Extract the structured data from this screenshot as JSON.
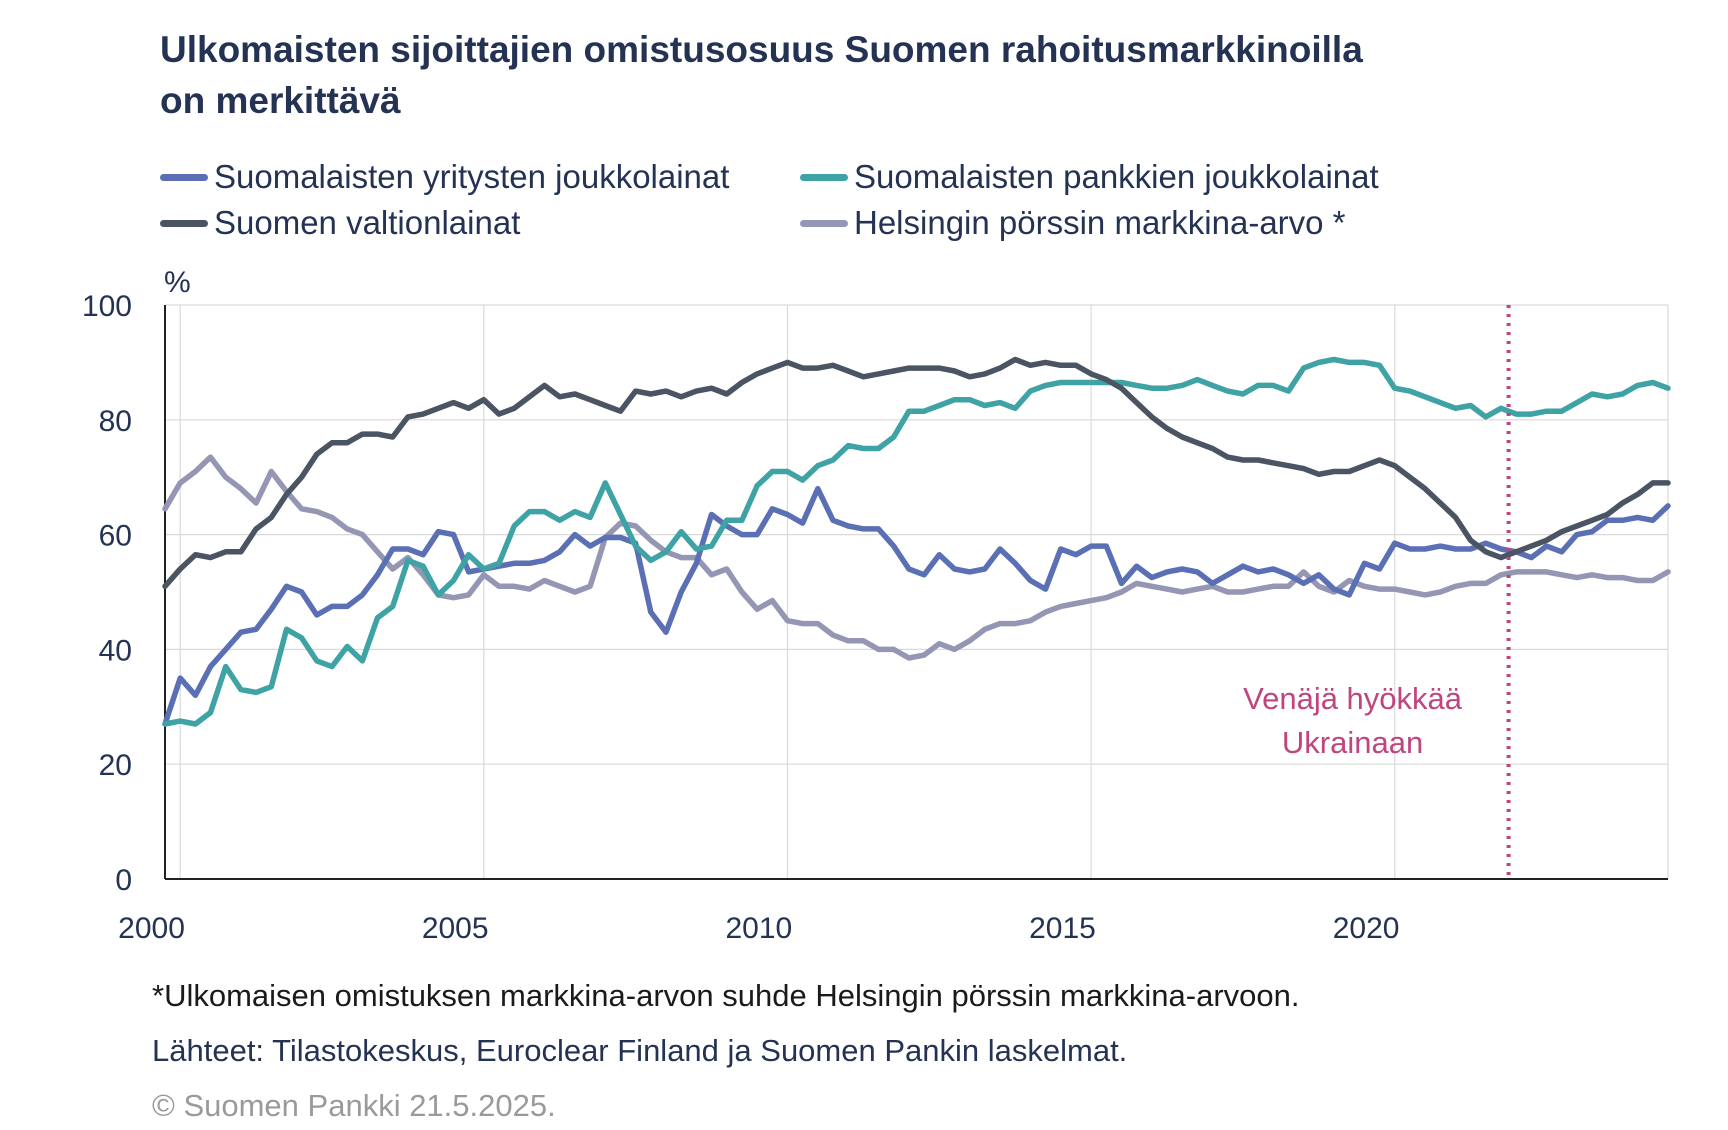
{
  "title_line1": "Ulkomaisten sijoittajien omistusosuus Suomen rahoitusmarkkinoilla",
  "title_line2": "on merkittävä",
  "legend": [
    {
      "label": "Suomalaisten yritysten joukkolainat",
      "color": "#5b6fb5"
    },
    {
      "label": "Suomalaisten pankkien joukkolainat",
      "color": "#3fa3a6"
    },
    {
      "label": "Suomen valtionlainat",
      "color": "#4a5462"
    },
    {
      "label": "Helsingin pörssin markkina-arvo *",
      "color": "#9496b3"
    }
  ],
  "footnotes": {
    "asterisk": "*Ulkomaisen omistuksen markkina-arvon suhde Helsingin pörssin markkina-arvoon.",
    "sources": "Lähteet: Tilastokeskus, Euroclear Finland ja Suomen Pankin laskelmat.",
    "copyright": "© Suomen Pankki 21.5.2025."
  },
  "chart_data": {
    "type": "line",
    "title": "Ulkomaisten sijoittajien omistusosuus Suomen rahoitusmarkkinoilla on merkittävä",
    "ylabel": "%",
    "ylim": [
      0,
      100
    ],
    "yticks": [
      0,
      20,
      40,
      60,
      80,
      100
    ],
    "xlim": [
      1999.75,
      2024.5
    ],
    "xticks": [
      2000,
      2005,
      2010,
      2015,
      2020
    ],
    "grid": true,
    "legend_position": "top",
    "annotations": [
      {
        "type": "vline",
        "x": 2021.875,
        "color": "#c0457f",
        "style": "dotted",
        "text": "Venäjä hyökkää Ukrainaan"
      }
    ],
    "series": [
      {
        "name": "Suomalaisten yritysten joukkolainat",
        "color": "#5b6fb5",
        "x": [
          1999.75,
          2000.0,
          2000.25,
          2000.5,
          2000.75,
          2001.0,
          2001.25,
          2001.5,
          2001.75,
          2002.0,
          2002.25,
          2002.5,
          2002.75,
          2003.0,
          2003.25,
          2003.5,
          2003.75,
          2004.0,
          2004.25,
          2004.5,
          2004.75,
          2005.0,
          2005.25,
          2005.5,
          2005.75,
          2006.0,
          2006.25,
          2006.5,
          2006.75,
          2007.0,
          2007.25,
          2007.5,
          2007.75,
          2008.0,
          2008.25,
          2008.5,
          2008.75,
          2009.0,
          2009.25,
          2009.5,
          2009.75,
          2010.0,
          2010.25,
          2010.5,
          2010.75,
          2011.0,
          2011.25,
          2011.5,
          2011.75,
          2012.0,
          2012.25,
          2012.5,
          2012.75,
          2013.0,
          2013.25,
          2013.5,
          2013.75,
          2014.0,
          2014.25,
          2014.5,
          2014.75,
          2015.0,
          2015.25,
          2015.5,
          2015.75,
          2016.0,
          2016.25,
          2016.5,
          2016.75,
          2017.0,
          2017.25,
          2017.5,
          2017.75,
          2018.0,
          2018.25,
          2018.5,
          2018.75,
          2019.0,
          2019.25,
          2019.5,
          2019.75,
          2020.0,
          2020.25,
          2020.5,
          2020.75,
          2021.0,
          2021.25,
          2021.5,
          2021.75,
          2022.0,
          2022.25,
          2022.5,
          2022.75,
          2023.0,
          2023.25,
          2023.5,
          2023.75,
          2024.0,
          2024.25,
          2024.5
        ],
        "values": [
          27,
          35,
          32,
          37,
          40,
          43,
          43.5,
          47,
          51,
          50,
          46,
          47.5,
          47.5,
          49.5,
          53,
          57.5,
          57.5,
          56.5,
          60.5,
          60,
          53.5,
          54,
          54.5,
          55,
          55,
          55.5,
          57,
          60,
          58,
          59.5,
          59.5,
          58.5,
          46.5,
          43,
          50,
          55,
          63.5,
          61.5,
          60,
          60,
          64.5,
          63.5,
          62,
          68,
          62.5,
          61.5,
          61,
          61,
          58,
          54,
          53,
          56.5,
          54,
          53.5,
          54,
          57.5,
          55,
          52,
          50.5,
          57.5,
          56.5,
          58,
          58,
          51.5,
          54.5,
          52.5,
          53.5,
          54,
          53.5,
          51.5,
          53,
          54.5,
          53.5,
          54,
          53,
          51.5,
          53,
          50.5,
          49.5,
          55,
          54,
          58.5,
          57.5,
          57.5,
          58,
          57.5,
          57.5,
          58.5,
          57.5,
          57,
          56,
          58,
          57,
          60,
          60.5,
          62.5,
          62.5,
          63,
          62.5,
          65
        ]
      },
      {
        "name": "Suomalaisten pankkien joukkolainat",
        "color": "#3fa3a6",
        "x": [
          1999.75,
          2000.0,
          2000.25,
          2000.5,
          2000.75,
          2001.0,
          2001.25,
          2001.5,
          2001.75,
          2002.0,
          2002.25,
          2002.5,
          2002.75,
          2003.0,
          2003.25,
          2003.5,
          2003.75,
          2004.0,
          2004.25,
          2004.5,
          2004.75,
          2005.0,
          2005.25,
          2005.5,
          2005.75,
          2006.0,
          2006.25,
          2006.5,
          2006.75,
          2007.0,
          2007.25,
          2007.5,
          2007.75,
          2008.0,
          2008.25,
          2008.5,
          2008.75,
          2009.0,
          2009.25,
          2009.5,
          2009.75,
          2010.0,
          2010.25,
          2010.5,
          2010.75,
          2011.0,
          2011.25,
          2011.5,
          2011.75,
          2012.0,
          2012.25,
          2012.5,
          2012.75,
          2013.0,
          2013.25,
          2013.5,
          2013.75,
          2014.0,
          2014.25,
          2014.5,
          2014.75,
          2015.0,
          2015.25,
          2015.5,
          2015.75,
          2016.0,
          2016.25,
          2016.5,
          2016.75,
          2017.0,
          2017.25,
          2017.5,
          2017.75,
          2018.0,
          2018.25,
          2018.5,
          2018.75,
          2019.0,
          2019.25,
          2019.5,
          2019.75,
          2020.0,
          2020.25,
          2020.5,
          2020.75,
          2021.0,
          2021.25,
          2021.5,
          2021.75,
          2022.0,
          2022.25,
          2022.5,
          2022.75,
          2023.0,
          2023.25,
          2023.5,
          2023.75,
          2024.0,
          2024.25,
          2024.5
        ],
        "values": [
          27,
          27.5,
          27,
          29,
          37,
          33,
          32.5,
          33.5,
          43.5,
          42,
          38,
          37,
          40.5,
          38,
          45.5,
          47.5,
          55.5,
          54.5,
          49.5,
          52,
          56.5,
          54,
          55,
          61.5,
          64,
          64,
          62.5,
          64,
          63,
          69,
          63.5,
          58,
          55.5,
          57,
          60.5,
          57.5,
          58,
          62.5,
          62.5,
          68.5,
          71,
          71,
          69.5,
          72,
          73,
          75.5,
          75,
          75,
          77,
          81.5,
          81.5,
          82.5,
          83.5,
          83.5,
          82.5,
          83,
          82,
          85,
          86,
          86.5,
          86.5,
          86.5,
          86.5,
          86.5,
          86,
          85.5,
          85.5,
          86,
          87,
          86,
          85,
          84.5,
          86,
          86,
          85,
          89,
          90,
          90.5,
          90,
          90,
          89.5,
          85.5,
          85,
          84,
          83,
          82,
          82.5,
          80.5,
          82,
          81,
          81,
          81.5,
          81.5,
          83,
          84.5,
          84,
          84.5,
          86,
          86.5,
          85.5
        ]
      },
      {
        "name": "Suomen valtionlainat",
        "color": "#4a5462",
        "x": [
          1999.75,
          2000.0,
          2000.25,
          2000.5,
          2000.75,
          2001.0,
          2001.25,
          2001.5,
          2001.75,
          2002.0,
          2002.25,
          2002.5,
          2002.75,
          2003.0,
          2003.25,
          2003.5,
          2003.75,
          2004.0,
          2004.25,
          2004.5,
          2004.75,
          2005.0,
          2005.25,
          2005.5,
          2005.75,
          2006.0,
          2006.25,
          2006.5,
          2006.75,
          2007.0,
          2007.25,
          2007.5,
          2007.75,
          2008.0,
          2008.25,
          2008.5,
          2008.75,
          2009.0,
          2009.25,
          2009.5,
          2009.75,
          2010.0,
          2010.25,
          2010.5,
          2010.75,
          2011.0,
          2011.25,
          2011.5,
          2011.75,
          2012.0,
          2012.25,
          2012.5,
          2012.75,
          2013.0,
          2013.25,
          2013.5,
          2013.75,
          2014.0,
          2014.25,
          2014.5,
          2014.75,
          2015.0,
          2015.25,
          2015.5,
          2015.75,
          2016.0,
          2016.25,
          2016.5,
          2016.75,
          2017.0,
          2017.25,
          2017.5,
          2017.75,
          2018.0,
          2018.25,
          2018.5,
          2018.75,
          2019.0,
          2019.25,
          2019.5,
          2019.75,
          2020.0,
          2020.25,
          2020.5,
          2020.75,
          2021.0,
          2021.25,
          2021.5,
          2021.75,
          2022.0,
          2022.25,
          2022.5,
          2022.75,
          2023.0,
          2023.25,
          2023.5,
          2023.75,
          2024.0,
          2024.25,
          2024.5
        ],
        "values": [
          51,
          54,
          56.5,
          56,
          57,
          57,
          61,
          63,
          67,
          70,
          74,
          76,
          76,
          77.5,
          77.5,
          77,
          80.5,
          81,
          82,
          83,
          82,
          83.5,
          81,
          82,
          84,
          86,
          84,
          84.5,
          83.5,
          82.5,
          81.5,
          85,
          84.5,
          85,
          84,
          85,
          85.5,
          84.5,
          86.5,
          88,
          89,
          90,
          89,
          89,
          89.5,
          88.5,
          87.5,
          88,
          88.5,
          89,
          89,
          89,
          88.5,
          87.5,
          88,
          89,
          90.5,
          89.5,
          90,
          89.5,
          89.5,
          88,
          87,
          85.5,
          83,
          80.5,
          78.5,
          77,
          76,
          75,
          73.5,
          73,
          73,
          72.5,
          72,
          71.5,
          70.5,
          71,
          71,
          72,
          73,
          72,
          70,
          68,
          65.5,
          63,
          59,
          57,
          56,
          57,
          58,
          59,
          60.5,
          61.5,
          62.5,
          63.5,
          65.5,
          67,
          69,
          69
        ]
      },
      {
        "name": "Helsingin pörssin markkina-arvo *",
        "color": "#9496b3",
        "x": [
          1999.75,
          2000.0,
          2000.25,
          2000.5,
          2000.75,
          2001.0,
          2001.25,
          2001.5,
          2001.75,
          2002.0,
          2002.25,
          2002.5,
          2002.75,
          2003.0,
          2003.25,
          2003.5,
          2003.75,
          2004.0,
          2004.25,
          2004.5,
          2004.75,
          2005.0,
          2005.25,
          2005.5,
          2005.75,
          2006.0,
          2006.25,
          2006.5,
          2006.75,
          2007.0,
          2007.25,
          2007.5,
          2007.75,
          2008.0,
          2008.25,
          2008.5,
          2008.75,
          2009.0,
          2009.25,
          2009.5,
          2009.75,
          2010.0,
          2010.25,
          2010.5,
          2010.75,
          2011.0,
          2011.25,
          2011.5,
          2011.75,
          2012.0,
          2012.25,
          2012.5,
          2012.75,
          2013.0,
          2013.25,
          2013.5,
          2013.75,
          2014.0,
          2014.25,
          2014.5,
          2014.75,
          2015.0,
          2015.25,
          2015.5,
          2015.75,
          2016.0,
          2016.25,
          2016.5,
          2016.75,
          2017.0,
          2017.25,
          2017.5,
          2017.75,
          2018.0,
          2018.25,
          2018.5,
          2018.75,
          2019.0,
          2019.25,
          2019.5,
          2019.75,
          2020.0,
          2020.25,
          2020.5,
          2020.75,
          2021.0,
          2021.25,
          2021.5,
          2021.75,
          2022.0,
          2022.25,
          2022.5,
          2022.75,
          2023.0,
          2023.25,
          2023.5,
          2023.75,
          2024.0,
          2024.25,
          2024.5
        ],
        "values": [
          64.5,
          69,
          71,
          73.5,
          70,
          68,
          65.5,
          71,
          67.5,
          64.5,
          64,
          63,
          61,
          60,
          57,
          54,
          56,
          53,
          49.5,
          49,
          49.5,
          53,
          51,
          51,
          50.5,
          52,
          51,
          50,
          51,
          59.5,
          62,
          61.5,
          59,
          57,
          56,
          56,
          53,
          54,
          50,
          47,
          48.5,
          45,
          44.5,
          44.5,
          42.5,
          41.5,
          41.5,
          40,
          40,
          38.5,
          39,
          41,
          40,
          41.5,
          43.5,
          44.5,
          44.5,
          45,
          46.5,
          47.5,
          48,
          48.5,
          49,
          50,
          51.5,
          51,
          50.5,
          50,
          50.5,
          51,
          50,
          50,
          50.5,
          51,
          51,
          53.5,
          51,
          50,
          52,
          51,
          50.5,
          50.5,
          50,
          49.5,
          50,
          51,
          51.5,
          51.5,
          53,
          53.5,
          53.5,
          53.5,
          53,
          52.5,
          53,
          52.5,
          52.5,
          52,
          52,
          53.5
        ]
      }
    ]
  }
}
